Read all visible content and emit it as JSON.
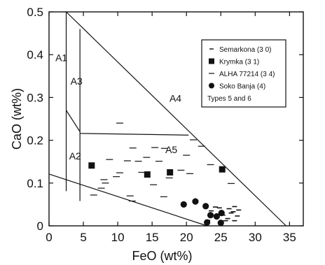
{
  "chart_data": {
    "type": "scatter",
    "title": "",
    "xlabel": "FeO (wt%)",
    "ylabel": "CaO (wt%)",
    "xlim": [
      0,
      37
    ],
    "ylim": [
      0,
      0.5
    ],
    "x_ticks": [
      0,
      5,
      10,
      15,
      20,
      25,
      30,
      35
    ],
    "x_tick_labels": [
      "0",
      "5",
      "10",
      "15",
      "20",
      "25",
      "30",
      "35"
    ],
    "y_ticks": [
      0,
      0.1,
      0.2,
      0.3,
      0.4,
      0.5
    ],
    "y_tick_labels": [
      "0",
      "0.1",
      "0.2",
      "0.3",
      "0.4",
      "0.5"
    ],
    "grid": false,
    "legend": {
      "placement": "top-right",
      "entries": [
        {
          "marker": "dash",
          "label": "Semarkona (3 0)"
        },
        {
          "marker": "square",
          "label": "Krymka (3 1)"
        },
        {
          "marker": "hline",
          "label": "ALHA 77214 (3 4)"
        },
        {
          "marker": "circle",
          "label": "Soko Banja (4)"
        },
        {
          "marker": "none",
          "label": "Types 5 and 6"
        }
      ]
    },
    "region_labels": [
      {
        "text": "A1",
        "x": 1.8,
        "y": 0.385
      },
      {
        "text": "A3",
        "x": 4.0,
        "y": 0.33
      },
      {
        "text": "A4",
        "x": 18.4,
        "y": 0.29
      },
      {
        "text": "A2",
        "x": 3.8,
        "y": 0.155
      },
      {
        "text": "A5",
        "x": 17.8,
        "y": 0.17
      }
    ],
    "boundary_lines": [
      [
        [
          2.5,
          0.5
        ],
        [
          34.5,
          0.0
        ]
      ],
      [
        [
          0,
          0.121
        ],
        [
          23.0,
          0.0
        ]
      ],
      [
        [
          2.5,
          0.5
        ],
        [
          2.5,
          0.081
        ]
      ],
      [
        [
          4.5,
          0.46
        ],
        [
          4.5,
          0.058
        ]
      ],
      [
        [
          2.5,
          0.27
        ],
        [
          4.5,
          0.22
        ]
      ],
      [
        [
          4.5,
          0.216
        ],
        [
          20.3,
          0.212
        ]
      ]
    ],
    "series": [
      {
        "name": "Krymka (3 1)",
        "marker": "square",
        "points": [
          [
            6.2,
            0.141
          ],
          [
            14.3,
            0.12
          ],
          [
            17.6,
            0.125
          ],
          [
            25.2,
            0.132
          ]
        ]
      },
      {
        "name": "Soko Banja (4)",
        "marker": "circle",
        "points": [
          [
            19.6,
            0.05
          ],
          [
            21.3,
            0.057
          ],
          [
            22.8,
            0.046
          ],
          [
            23.5,
            0.025
          ],
          [
            25.1,
            0.03
          ],
          [
            23.0,
            0.008
          ],
          [
            25.0,
            0.007
          ],
          [
            24.4,
            0.022
          ]
        ]
      },
      {
        "name": "Semarkona (3 0)",
        "marker": "dash",
        "points": [
          [
            23.6,
            0.035
          ],
          [
            24.8,
            0.042
          ],
          [
            26.2,
            0.04
          ],
          [
            27.0,
            0.045
          ],
          [
            27.6,
            0.037
          ],
          [
            26.5,
            0.03
          ],
          [
            25.3,
            0.025
          ],
          [
            27.4,
            0.023
          ],
          [
            26.0,
            0.017
          ],
          [
            27.0,
            0.012
          ],
          [
            25.7,
            0.012
          ],
          [
            26.8,
            0.033
          ],
          [
            24.2,
            0.044
          ],
          [
            23.1,
            0.013
          ]
        ]
      },
      {
        "name": "ALHA 77214 (3 4)",
        "marker": "hline",
        "points": [
          [
            15.4,
            0.183
          ],
          [
            16.8,
            0.181
          ],
          [
            12.2,
            0.182
          ],
          [
            11.4,
            0.152
          ],
          [
            9.8,
            0.115
          ],
          [
            10.3,
            0.124
          ],
          [
            7.6,
            0.088
          ],
          [
            8.0,
            0.108
          ],
          [
            8.2,
            0.1
          ],
          [
            11.8,
            0.07
          ],
          [
            12.1,
            0.058
          ],
          [
            17.5,
            0.112
          ],
          [
            14.2,
            0.16
          ],
          [
            13.0,
            0.151
          ],
          [
            16.0,
            0.151
          ],
          [
            21.0,
            0.201
          ],
          [
            22.2,
            0.186
          ],
          [
            20.0,
            0.165
          ],
          [
            19.2,
            0.13
          ],
          [
            8.8,
            0.155
          ],
          [
            13.5,
            0.125
          ],
          [
            15.2,
            0.096
          ],
          [
            16.7,
            0.068
          ],
          [
            20.5,
            0.122
          ],
          [
            23.5,
            0.143
          ],
          [
            10.3,
            0.24
          ],
          [
            26.5,
            0.099
          ],
          [
            6.5,
            0.072
          ]
        ]
      }
    ]
  }
}
